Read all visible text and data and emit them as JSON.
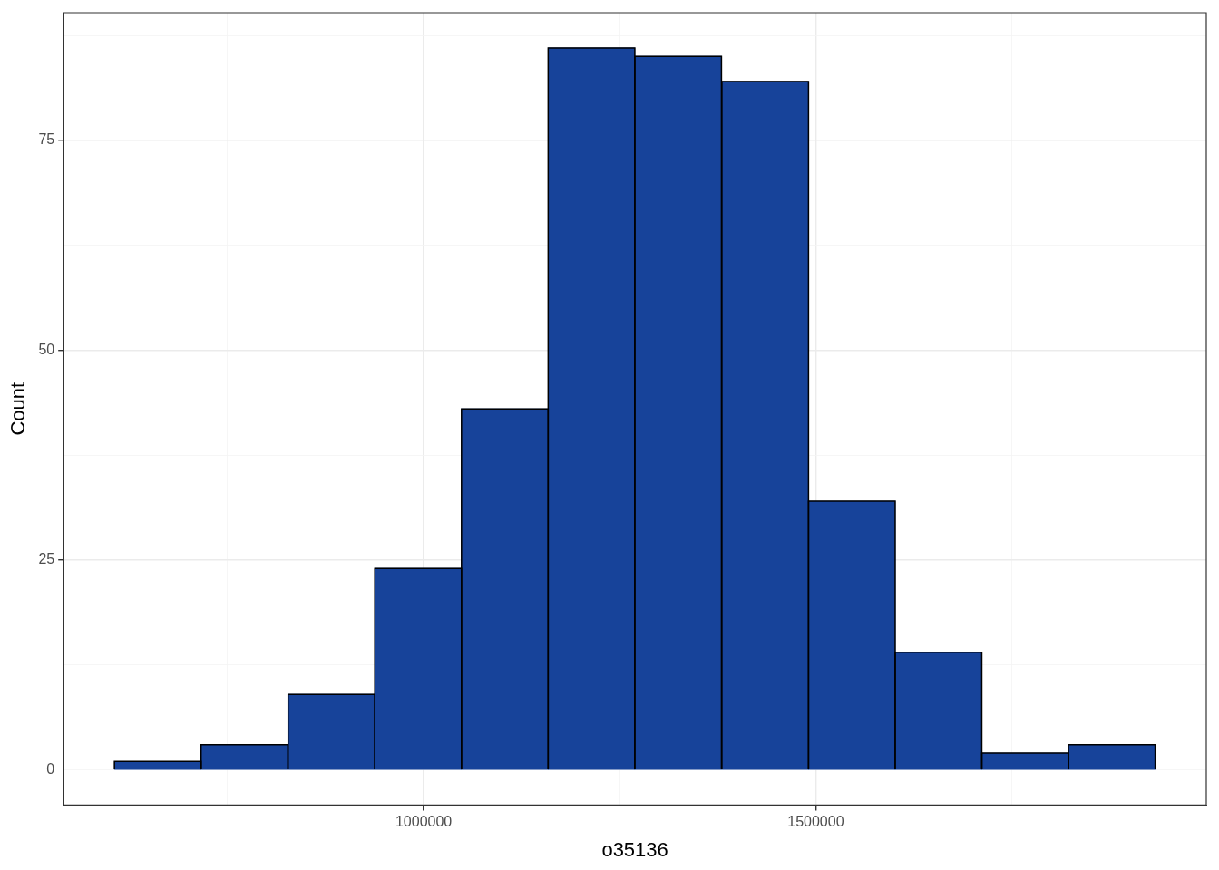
{
  "chart_data": {
    "type": "histogram",
    "xlabel": "o35136",
    "ylabel": "Count",
    "color": "#17439a",
    "bins": [
      606000,
      716000,
      827000,
      938000,
      1048000,
      1159000,
      1269000,
      1380000,
      1491000,
      1601000,
      1712000,
      1822000,
      1933000
    ],
    "values": [
      1,
      3,
      9,
      24,
      43,
      86,
      85,
      82,
      32,
      14,
      2,
      3
    ],
    "xlim": [
      541000,
      1998000
    ],
    "xticks": [
      {
        "value": 750000,
        "label": null
      },
      1000000,
      {
        "value": 1250000,
        "label": null
      },
      1500000,
      {
        "value": 1750000,
        "label": null
      }
    ],
    "ylim": [
      -4.2,
      90.2
    ],
    "yticks": [
      0,
      {
        "value": 12.5,
        "label": null
      },
      25,
      {
        "value": 37.5,
        "label": null
      },
      50,
      {
        "value": 62.5,
        "label": null
      },
      75,
      {
        "value": 87.5,
        "label": null
      }
    ],
    "grid": true,
    "legend": false
  }
}
